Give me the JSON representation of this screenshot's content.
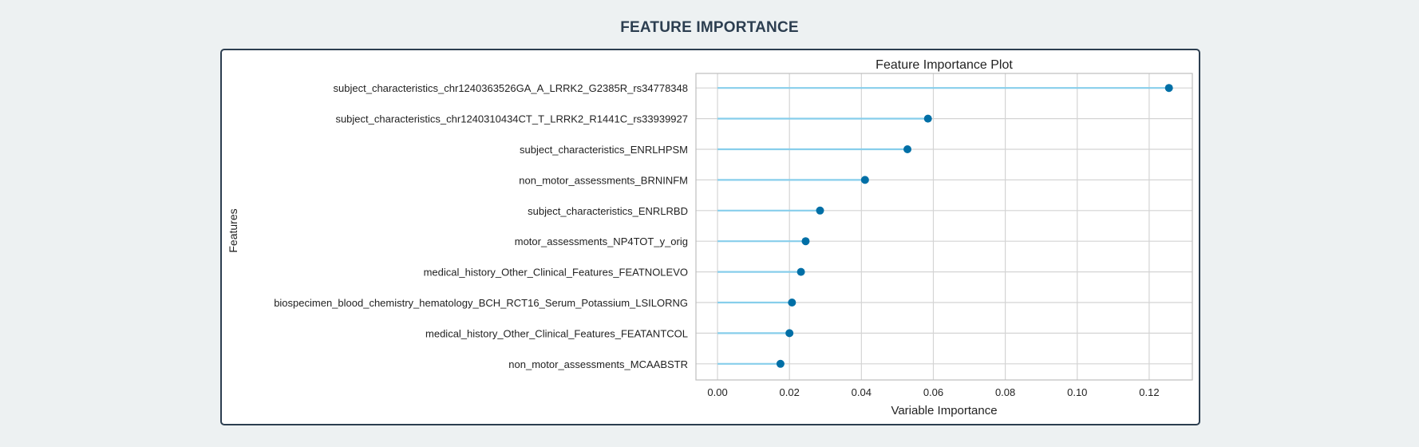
{
  "page": {
    "title": "FEATURE IMPORTANCE"
  },
  "chart_data": {
    "type": "lollipop",
    "title": "Feature Importance Plot",
    "xlabel": "Variable Importance",
    "ylabel": "Features",
    "xlim": [
      -0.006,
      0.132
    ],
    "xticks": [
      0.0,
      0.02,
      0.04,
      0.06,
      0.08,
      0.1,
      0.12
    ],
    "xtick_labels": [
      "0.00",
      "0.02",
      "0.04",
      "0.06",
      "0.08",
      "0.10",
      "0.12"
    ],
    "grid": true,
    "colors": {
      "stem": "#87ceeb",
      "marker": "#006fa6",
      "grid": "#d4d4d4",
      "frame": "#bdbdbd"
    },
    "categories": [
      "subject_characteristics_chr1240363526GA_A_LRRK2_G2385R_rs34778348",
      "subject_characteristics_chr1240310434CT_T_LRRK2_R1441C_rs33939927",
      "subject_characteristics_ENRLHPSM",
      "non_motor_assessments_BRNINFM",
      "subject_characteristics_ENRLRBD",
      "motor_assessments_NP4TOT_y_orig",
      "medical_history_Other_Clinical_Features_FEATNOLEVO",
      "biospecimen_blood_chemistry_hematology_BCH_RCT16_Serum_Potassium_LSILORNG",
      "medical_history_Other_Clinical_Features_FEATANTCOL",
      "non_motor_assessments_MCAABSTR"
    ],
    "values": [
      0.1255,
      0.0585,
      0.0528,
      0.041,
      0.0285,
      0.0245,
      0.0232,
      0.0207,
      0.02,
      0.0175
    ]
  }
}
